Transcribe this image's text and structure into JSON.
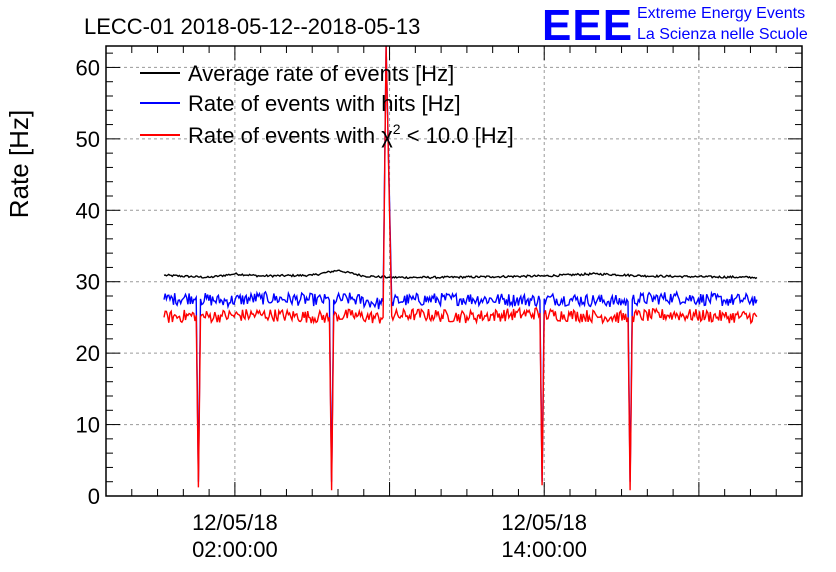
{
  "chart_data": {
    "type": "line",
    "title": "LECC-01 2018-05-12--2018-05-13",
    "ylabel": "Rate [Hz]",
    "xlabel": "",
    "ylim": [
      0,
      63
    ],
    "yticks": [
      0,
      10,
      20,
      30,
      40,
      50,
      60
    ],
    "xlim": [
      "2018-05-11 21:00",
      "2018-05-13 00:00"
    ],
    "xticks": [
      {
        "date": "12/05/18",
        "time": "02:00:00",
        "value": "2018-05-12 02:00"
      },
      {
        "date": "12/05/18",
        "time": "14:00:00",
        "value": "2018-05-12 14:00"
      }
    ],
    "grid": true,
    "legend_position": "top-left",
    "series": [
      {
        "name": "Average rate of events [Hz]",
        "color": "#000000",
        "x": [
          "2018-05-11 23:15",
          "2018-05-12 01:00",
          "2018-05-12 02:00",
          "2018-05-12 03:00",
          "2018-05-12 05:00",
          "2018-05-12 06:00",
          "2018-05-12 07:00",
          "2018-05-12 08:00",
          "2018-05-12 10:00",
          "2018-05-12 12:00",
          "2018-05-12 14:00",
          "2018-05-12 16:00",
          "2018-05-12 18:00",
          "2018-05-12 20:00",
          "2018-05-12 22:15"
        ],
        "values": [
          30.9,
          30.6,
          31.1,
          30.8,
          30.9,
          31.6,
          30.8,
          30.6,
          30.6,
          30.7,
          30.8,
          31.1,
          30.8,
          30.7,
          30.6
        ]
      },
      {
        "name": "Rate of events with hits [Hz]",
        "color": "#0000ff",
        "x": [
          "2018-05-11 23:15",
          "2018-05-12 00:30",
          "2018-05-12 00:35",
          "2018-05-12 00:40",
          "2018-05-12 01:30",
          "2018-05-12 03:00",
          "2018-05-12 05:40",
          "2018-05-12 05:45",
          "2018-05-12 05:50",
          "2018-05-12 06:30",
          "2018-05-12 07:40",
          "2018-05-12 07:45",
          "2018-05-12 07:52",
          "2018-05-12 08:05",
          "2018-05-12 09:00",
          "2018-05-12 11:00",
          "2018-05-12 13:50",
          "2018-05-12 13:55",
          "2018-05-12 14:00",
          "2018-05-12 15:00",
          "2018-05-12 17:15",
          "2018-05-12 17:20",
          "2018-05-12 17:25",
          "2018-05-12 19:00",
          "2018-05-12 21:00",
          "2018-05-12 22:15"
        ],
        "values": [
          27.5,
          27.8,
          2.0,
          27.6,
          27.3,
          27.7,
          27.4,
          2.0,
          27.5,
          27.6,
          26.9,
          27.2,
          63.0,
          27.3,
          27.5,
          27.6,
          27.4,
          2.0,
          27.6,
          27.5,
          27.2,
          2.0,
          27.5,
          27.8,
          27.4,
          27.5
        ]
      },
      {
        "name": "Rate of events with χ² < 10.0 [Hz]",
        "name_prefix": "Rate of events with ",
        "name_symbol": "χ",
        "name_sup": "2",
        "name_suffix": " < 10.0 [Hz]",
        "color": "#ff0000",
        "x": [
          "2018-05-11 23:15",
          "2018-05-12 00:30",
          "2018-05-12 00:35",
          "2018-05-12 00:40",
          "2018-05-12 01:30",
          "2018-05-12 03:00",
          "2018-05-12 05:40",
          "2018-05-12 05:45",
          "2018-05-12 05:50",
          "2018-05-12 06:30",
          "2018-05-12 07:40",
          "2018-05-12 07:45",
          "2018-05-12 07:52",
          "2018-05-12 08:05",
          "2018-05-12 09:00",
          "2018-05-12 11:00",
          "2018-05-12 13:50",
          "2018-05-12 13:55",
          "2018-05-12 14:00",
          "2018-05-12 15:00",
          "2018-05-12 17:15",
          "2018-05-12 17:20",
          "2018-05-12 17:25",
          "2018-05-12 19:00",
          "2018-05-12 21:00",
          "2018-05-12 22:15"
        ],
        "values": [
          25.0,
          25.3,
          1.2,
          25.1,
          25.2,
          25.4,
          25.0,
          0.8,
          25.2,
          25.3,
          24.9,
          25.0,
          63.0,
          25.2,
          25.4,
          25.1,
          25.6,
          1.5,
          25.4,
          25.3,
          25.0,
          0.8,
          25.2,
          25.4,
          25.1,
          25.1
        ]
      }
    ]
  },
  "logo": {
    "text": "EEE",
    "line1": "Extreme Energy Events",
    "line2": "La Scienza nelle Scuole",
    "color": "#0000ff"
  }
}
